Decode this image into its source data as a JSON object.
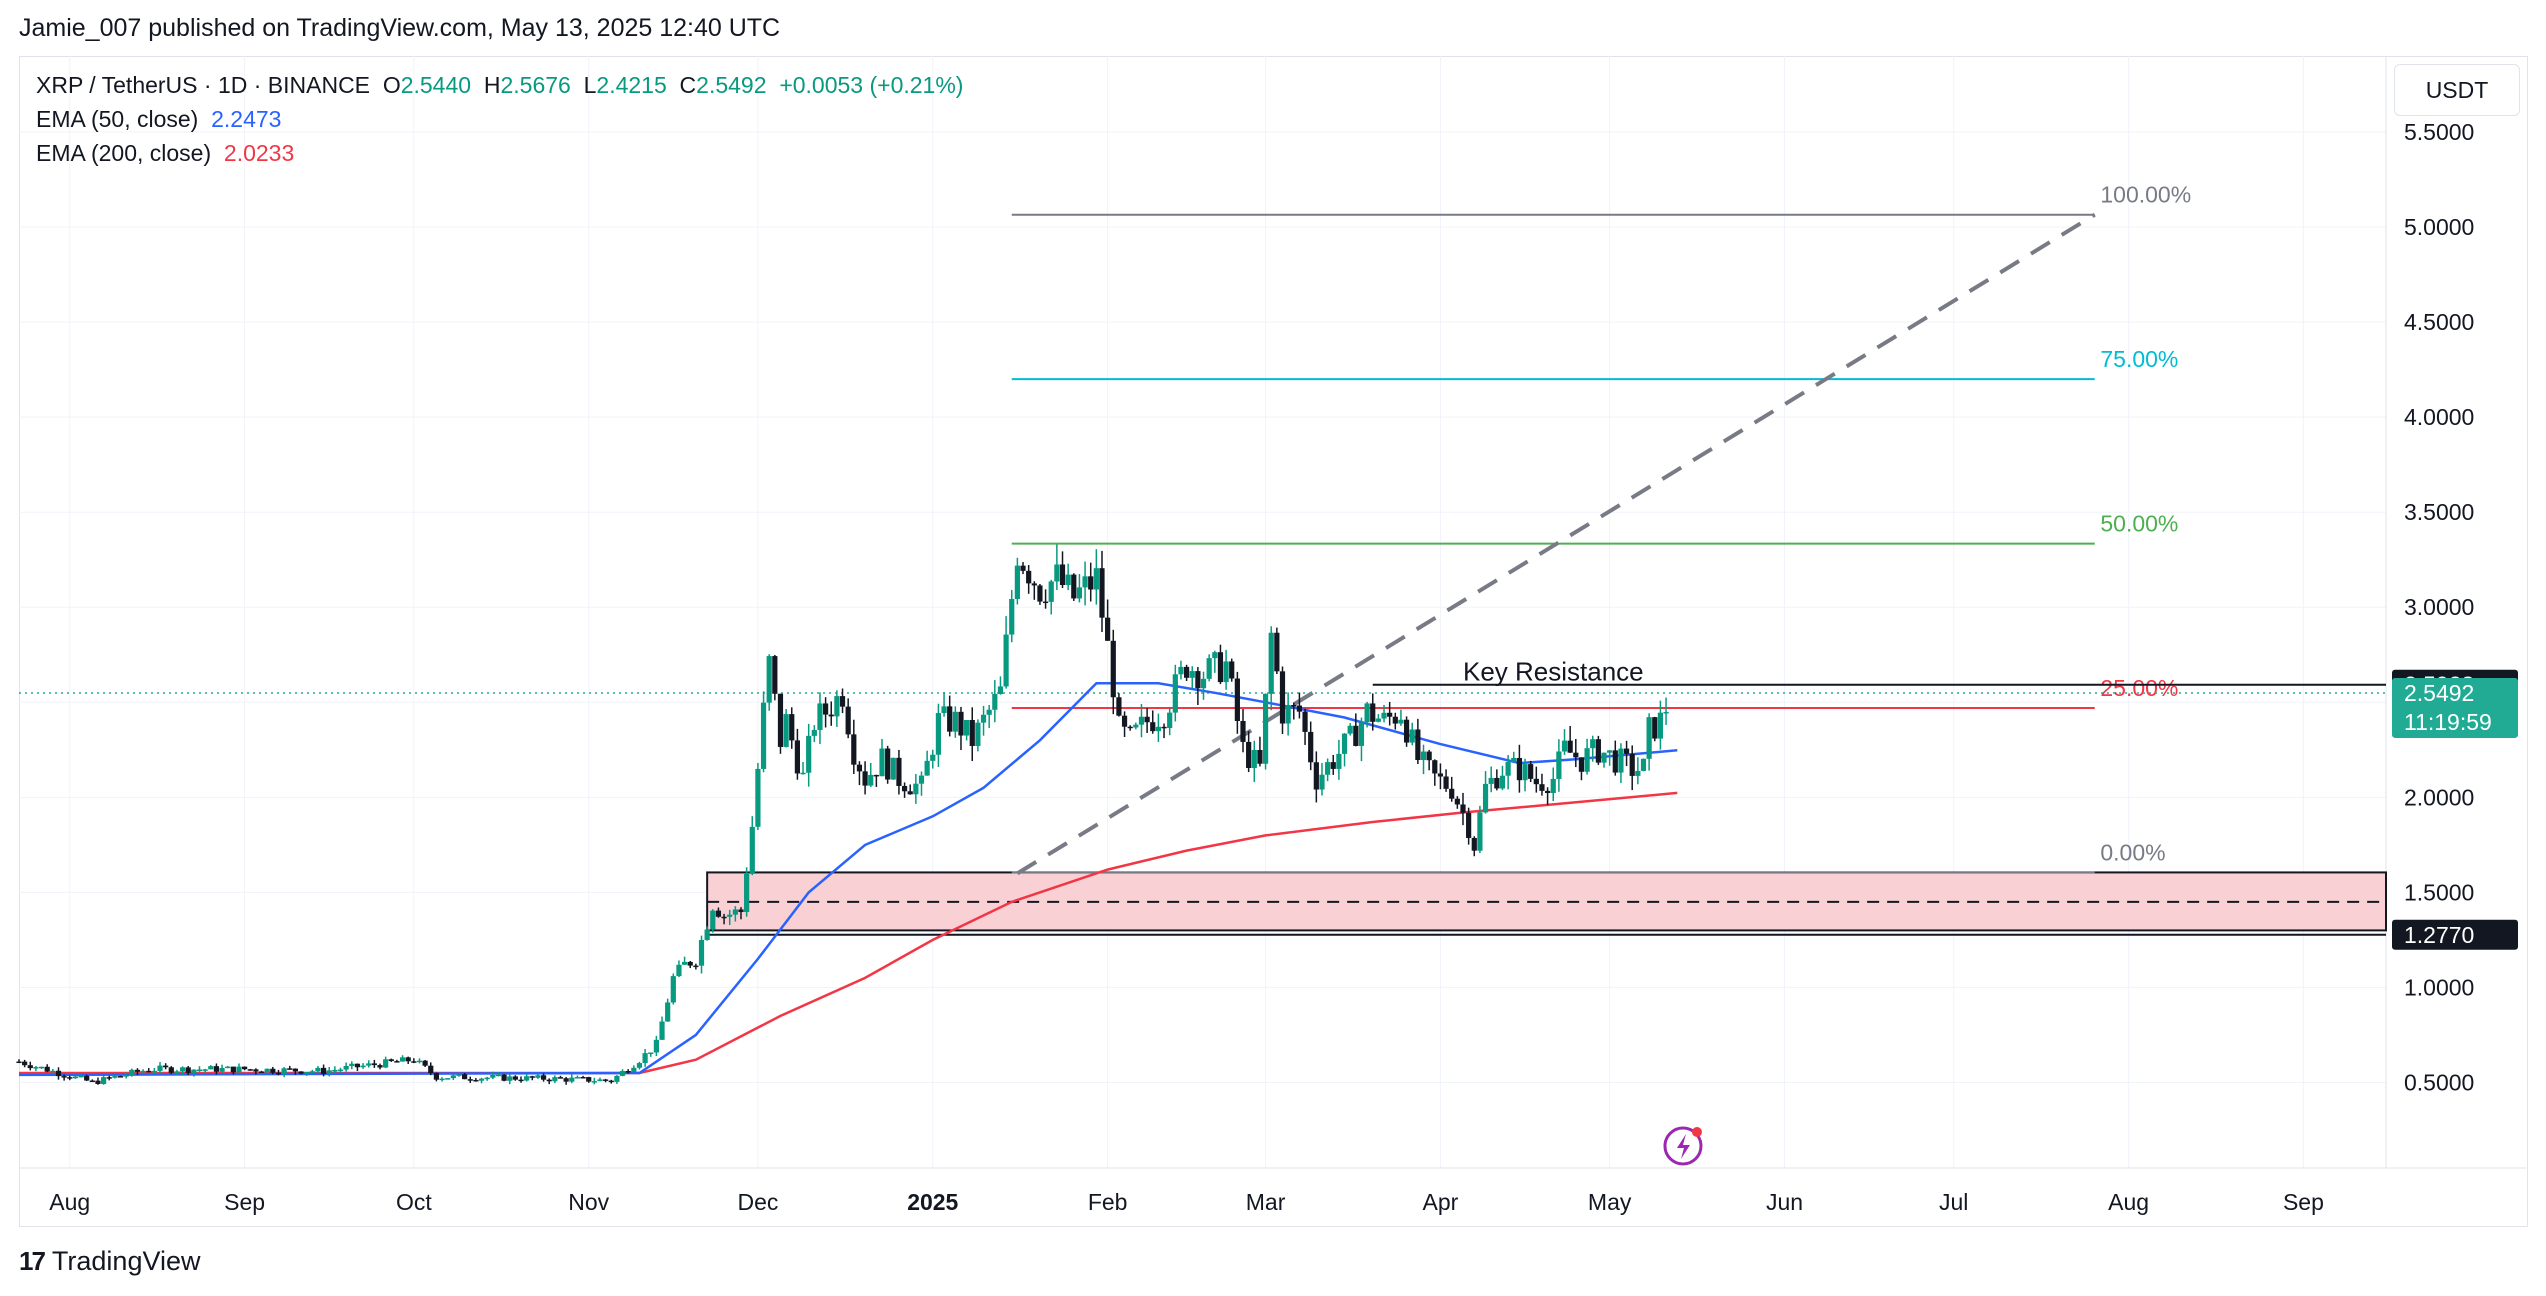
{
  "header": {
    "publisher": "Jamie_007 published on TradingView.com, May 13, 2025 12:40 UTC"
  },
  "legend": {
    "symbol": "XRP / TetherUS · 1D · BINANCE",
    "open_label": "O",
    "open": "2.5440",
    "high_label": "H",
    "high": "2.5676",
    "low_label": "L",
    "low": "2.4215",
    "close_label": "C",
    "close": "2.5492",
    "change": "+0.0053 (+0.21%)",
    "ema50_label": "EMA (50, close)",
    "ema50_value": "2.2473",
    "ema200_label": "EMA (200, close)",
    "ema200_value": "2.0233"
  },
  "currency_label": "USDT",
  "footer": {
    "brand": "TradingView",
    "logo_text": "17"
  },
  "colors": {
    "up": "#089981",
    "down": "#131722",
    "ema50": "#2962ff",
    "ema200": "#f23645",
    "fib100": "#787b86",
    "fib75": "#00bcd4",
    "fib50": "#4caf50",
    "fib25": "#f23645",
    "zone_fill": "#f9d0d4"
  },
  "chart_data": {
    "type": "candlestick",
    "ylim": [
      0.05,
      5.9
    ],
    "yticks": [
      "0.5000",
      "1.0000",
      "1.5000",
      "2.0000",
      "2.5000",
      "3.0000",
      "3.5000",
      "4.0000",
      "4.5000",
      "5.0000",
      "5.5000"
    ],
    "x_labels": [
      "Aug",
      "Sep",
      "Oct",
      "Nov",
      "Dec",
      "2025",
      "Feb",
      "Mar",
      "Apr",
      "May",
      "Jun",
      "Jul",
      "Aug",
      "Sep"
    ],
    "x_label_dates": [
      "2024-08-01",
      "2024-09-01",
      "2024-10-01",
      "2024-11-01",
      "2024-12-01",
      "2025-01-01",
      "2025-02-01",
      "2025-03-01",
      "2025-04-01",
      "2025-05-01",
      "2025-06-01",
      "2025-07-01",
      "2025-08-01",
      "2025-09-01"
    ],
    "x_start": "2024-07-23",
    "x_end": "2025-09-05",
    "price_series": [
      [
        "2024-07-23",
        0.61
      ],
      [
        "2024-08-05",
        0.5
      ],
      [
        "2024-08-15",
        0.57
      ],
      [
        "2024-09-01",
        0.57
      ],
      [
        "2024-09-15",
        0.56
      ],
      [
        "2024-10-01",
        0.62
      ],
      [
        "2024-10-05",
        0.53
      ],
      [
        "2024-10-25",
        0.52
      ],
      [
        "2024-11-05",
        0.51
      ],
      [
        "2024-11-10",
        0.62
      ],
      [
        "2024-11-13",
        0.7
      ],
      [
        "2024-11-16",
        1.05
      ],
      [
        "2024-11-18",
        1.12
      ],
      [
        "2024-11-20",
        1.15
      ],
      [
        "2024-11-23",
        1.44
      ],
      [
        "2024-11-25",
        1.38
      ],
      [
        "2024-11-28",
        1.4
      ],
      [
        "2024-11-30",
        1.85
      ],
      [
        "2024-12-02",
        2.45
      ],
      [
        "2024-12-03",
        2.7
      ],
      [
        "2024-12-05",
        2.3
      ],
      [
        "2024-12-06",
        2.4
      ],
      [
        "2024-12-09",
        2.1
      ],
      [
        "2024-12-11",
        2.4
      ],
      [
        "2024-12-13",
        2.45
      ],
      [
        "2024-12-16",
        2.55
      ],
      [
        "2024-12-18",
        2.25
      ],
      [
        "2024-12-20",
        2.1
      ],
      [
        "2024-12-23",
        2.2
      ],
      [
        "2024-12-26",
        2.1
      ],
      [
        "2024-12-30",
        2.05
      ],
      [
        "2025-01-02",
        2.4
      ],
      [
        "2025-01-05",
        2.4
      ],
      [
        "2025-01-08",
        2.3
      ],
      [
        "2025-01-11",
        2.45
      ],
      [
        "2025-01-13",
        2.55
      ],
      [
        "2025-01-15",
        3.05
      ],
      [
        "2025-01-16",
        3.3
      ],
      [
        "2025-01-18",
        3.2
      ],
      [
        "2025-01-20",
        3.1
      ],
      [
        "2025-01-23",
        3.15
      ],
      [
        "2025-01-26",
        3.05
      ],
      [
        "2025-01-30",
        3.15
      ],
      [
        "2025-02-02",
        2.6
      ],
      [
        "2025-02-03",
        2.35
      ],
      [
        "2025-02-05",
        2.3
      ],
      [
        "2025-02-08",
        2.4
      ],
      [
        "2025-02-11",
        2.45
      ],
      [
        "2025-02-15",
        2.7
      ],
      [
        "2025-02-18",
        2.65
      ],
      [
        "2025-02-22",
        2.7
      ],
      [
        "2025-02-25",
        2.25
      ],
      [
        "2025-02-28",
        2.15
      ],
      [
        "2025-03-02",
        2.85
      ],
      [
        "2025-03-04",
        2.45
      ],
      [
        "2025-03-07",
        2.45
      ],
      [
        "2025-03-10",
        2.1
      ],
      [
        "2025-03-13",
        2.2
      ],
      [
        "2025-03-16",
        2.3
      ],
      [
        "2025-03-19",
        2.45
      ],
      [
        "2025-03-22",
        2.4
      ],
      [
        "2025-03-25",
        2.45
      ],
      [
        "2025-03-28",
        2.2
      ],
      [
        "2025-03-31",
        2.1
      ],
      [
        "2025-04-03",
        2.05
      ],
      [
        "2025-04-06",
        1.85
      ],
      [
        "2025-04-07",
        1.75
      ],
      [
        "2025-04-09",
        2.05
      ],
      [
        "2025-04-12",
        2.15
      ],
      [
        "2025-04-15",
        2.15
      ],
      [
        "2025-04-18",
        2.08
      ],
      [
        "2025-04-21",
        2.1
      ],
      [
        "2025-04-23",
        2.25
      ],
      [
        "2025-04-26",
        2.2
      ],
      [
        "2025-04-29",
        2.25
      ],
      [
        "2025-05-02",
        2.2
      ],
      [
        "2025-05-05",
        2.15
      ],
      [
        "2025-05-07",
        2.15
      ],
      [
        "2025-05-08",
        2.35
      ],
      [
        "2025-05-10",
        2.4
      ],
      [
        "2025-05-12",
        2.55
      ]
    ],
    "ema50": [
      [
        "2024-07-23",
        0.54
      ],
      [
        "2024-11-10",
        0.55
      ],
      [
        "2024-11-20",
        0.75
      ],
      [
        "2024-12-01",
        1.15
      ],
      [
        "2024-12-10",
        1.5
      ],
      [
        "2024-12-20",
        1.75
      ],
      [
        "2025-01-01",
        1.9
      ],
      [
        "2025-01-10",
        2.05
      ],
      [
        "2025-01-20",
        2.3
      ],
      [
        "2025-01-30",
        2.6
      ],
      [
        "2025-02-10",
        2.6
      ],
      [
        "2025-02-20",
        2.55
      ],
      [
        "2025-03-01",
        2.5
      ],
      [
        "2025-03-15",
        2.42
      ],
      [
        "2025-04-01",
        2.28
      ],
      [
        "2025-04-15",
        2.18
      ],
      [
        "2025-04-25",
        2.2
      ],
      [
        "2025-05-13",
        2.2473
      ]
    ],
    "ema200": [
      [
        "2024-07-23",
        0.55
      ],
      [
        "2024-11-10",
        0.55
      ],
      [
        "2024-11-20",
        0.62
      ],
      [
        "2024-12-05",
        0.85
      ],
      [
        "2024-12-20",
        1.05
      ],
      [
        "2025-01-01",
        1.25
      ],
      [
        "2025-01-15",
        1.45
      ],
      [
        "2025-02-01",
        1.62
      ],
      [
        "2025-02-15",
        1.72
      ],
      [
        "2025-03-01",
        1.8
      ],
      [
        "2025-03-20",
        1.87
      ],
      [
        "2025-04-05",
        1.92
      ],
      [
        "2025-04-20",
        1.96
      ],
      [
        "2025-05-13",
        2.0233
      ]
    ],
    "fib_levels": [
      {
        "label": "100.00%",
        "value": 5.065,
        "color": "#787b86"
      },
      {
        "label": "75.00%",
        "value": 4.2,
        "color": "#00bcd4"
      },
      {
        "label": "50.00%",
        "value": 3.335,
        "color": "#4caf50"
      },
      {
        "label": "25.00%",
        "value": 2.47,
        "color": "#f23645"
      },
      {
        "label": "0.00%",
        "value": 1.605,
        "color": "#787b86"
      }
    ],
    "fib_start": "2025-01-15",
    "fib_end": "2025-07-26",
    "fib_label_date": "2025-07-27",
    "key_resistance": {
      "label": "Key Resistance",
      "value": 2.5923,
      "start": "2025-03-20",
      "end": "2025-09-30",
      "label_date": "2025-04-05"
    },
    "support_zone": {
      "top": 1.605,
      "bottom": 1.3,
      "mid": 1.45,
      "start": "2024-11-22",
      "end": "2025-09-30"
    },
    "support_lower_line": 1.277,
    "trend_line": {
      "start_date": "2025-01-16",
      "start_value": 1.6,
      "end_date": "2025-07-26",
      "end_value": 5.065
    },
    "price_tags": [
      {
        "label": "2.5923",
        "value": 2.5923,
        "bg": "#131722"
      },
      {
        "label": "1.2770",
        "value": 1.277,
        "bg": "#131722"
      }
    ],
    "last_price": {
      "label": "2.5492",
      "countdown": "11:19:59",
      "value": 2.5492,
      "bg": "#22ab94"
    }
  }
}
